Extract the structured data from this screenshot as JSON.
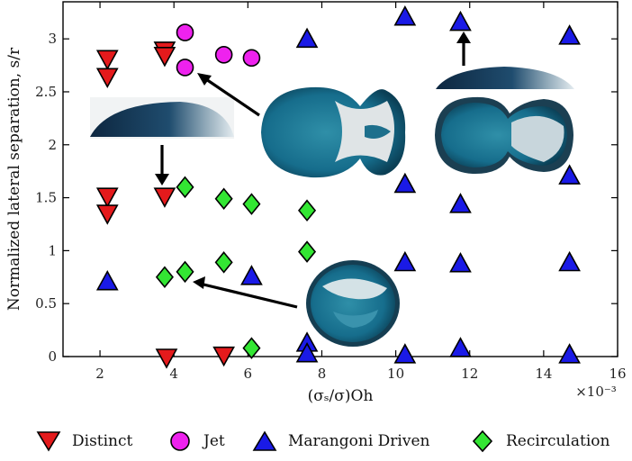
{
  "chart_data": {
    "type": "scatter",
    "xlabel": "(σₛ/σ)Oh",
    "ylabel": "Normalized lateral separation, s/r",
    "x_exponent_label": "×10⁻³",
    "xlim": [
      1,
      16
    ],
    "ylim": [
      0,
      3.35
    ],
    "x_ticks": [
      2,
      4,
      6,
      8,
      10,
      12,
      14,
      16
    ],
    "y_ticks": [
      0,
      0.5,
      1,
      1.5,
      2,
      2.5,
      3
    ],
    "y_tick_labels": [
      "0",
      "0.5",
      "1",
      "1.5",
      "2",
      "2.5",
      "3"
    ],
    "grid": false,
    "legend_position": "bottom",
    "series": [
      {
        "name": "Distinct",
        "marker": "triangle-down",
        "color": "#e41a1c",
        "points": [
          [
            2.2,
            2.82
          ],
          [
            2.2,
            2.65
          ],
          [
            3.75,
            2.9
          ],
          [
            3.75,
            2.85
          ],
          [
            2.2,
            1.52
          ],
          [
            2.2,
            1.36
          ],
          [
            3.75,
            1.52
          ],
          [
            3.8,
            0.0
          ],
          [
            5.35,
            0.02
          ]
        ]
      },
      {
        "name": "Jet",
        "marker": "circle",
        "color": "#ee22ee",
        "points": [
          [
            4.3,
            3.06
          ],
          [
            4.3,
            2.73
          ],
          [
            5.35,
            2.85
          ],
          [
            6.1,
            2.82
          ]
        ]
      },
      {
        "name": "Marangoni Driven",
        "marker": "triangle-up",
        "color": "#1a1ae6",
        "points": [
          [
            2.2,
            0.7
          ],
          [
            6.1,
            0.75
          ],
          [
            7.6,
            2.99
          ],
          [
            7.6,
            0.12
          ],
          [
            7.6,
            0.02
          ],
          [
            10.25,
            3.2
          ],
          [
            10.25,
            1.62
          ],
          [
            10.25,
            0.88
          ],
          [
            10.25,
            0.01
          ],
          [
            11.75,
            3.15
          ],
          [
            11.75,
            1.43
          ],
          [
            11.75,
            0.87
          ],
          [
            11.75,
            0.07
          ],
          [
            14.7,
            3.02
          ],
          [
            14.7,
            1.7
          ],
          [
            14.7,
            0.88
          ],
          [
            14.7,
            0.01
          ]
        ]
      },
      {
        "name": "Recirculation",
        "marker": "diamond",
        "color": "#33e633",
        "points": [
          [
            3.75,
            0.75
          ],
          [
            4.3,
            1.6
          ],
          [
            4.3,
            0.8
          ],
          [
            5.35,
            1.49
          ],
          [
            5.35,
            0.89
          ],
          [
            6.1,
            1.44
          ],
          [
            6.1,
            0.08
          ],
          [
            7.6,
            1.38
          ],
          [
            7.6,
            0.99
          ]
        ]
      }
    ]
  },
  "insets": [
    {
      "name": "side-view-blue-droplet"
    },
    {
      "name": "top-view-jet-coalescence"
    },
    {
      "name": "top-view-distinct-droplets"
    },
    {
      "name": "side-view-merged-droplet"
    },
    {
      "name": "top-view-recirculation"
    }
  ]
}
